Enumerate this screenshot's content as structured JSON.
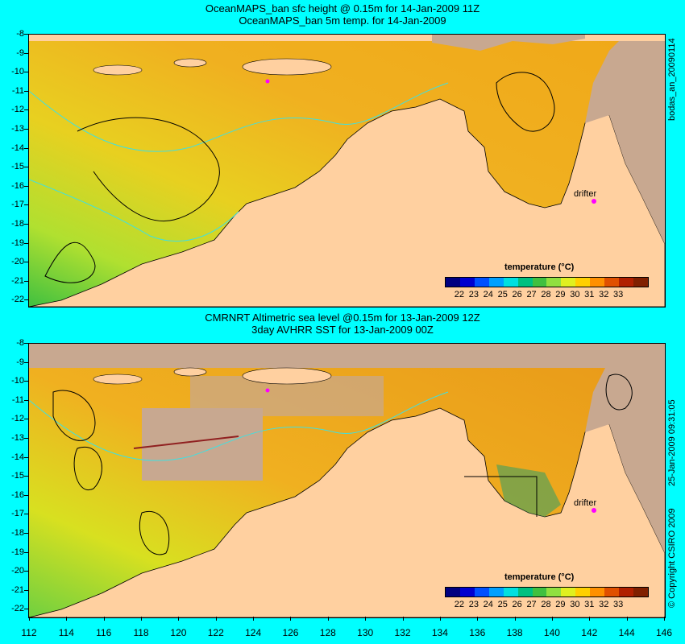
{
  "top": {
    "title1": "OceanMAPS_ban sfc height @ 0.15m for 14-Jan-2009 11Z",
    "title2": "OceanMAPS_ban 5m temp. for 14-Jan-2009",
    "side_label": "bodas_an_20090114"
  },
  "bottom": {
    "title1": "CMRNRT Altimetric sea level  @0.15m  for 13-Jan-2009 12Z",
    "title2": "3day AVHRR SST for 13-Jan-2009 00Z",
    "side_label": "25-Jan-2009 09:31:05",
    "copyright": "© Copyright CSIRO 2009"
  },
  "colorbar": {
    "title": "temperature (°C)",
    "labels": [
      "22",
      "23",
      "24",
      "25",
      "26",
      "27",
      "28",
      "29",
      "30",
      "31",
      "32",
      "33"
    ],
    "colors": [
      "#000080",
      "#0000d0",
      "#0050ff",
      "#00a0ff",
      "#00e0e0",
      "#00c080",
      "#40c040",
      "#90e040",
      "#e0f020",
      "#ffd000",
      "#ff9000",
      "#e05000",
      "#b02000",
      "#802000"
    ]
  },
  "drifter_label": "drifter",
  "lat_labels": [
    "-8",
    "-9",
    "-10",
    "-11",
    "-12",
    "-13",
    "-14",
    "-15",
    "-16",
    "-17",
    "-18",
    "-19",
    "-20",
    "-21",
    "-22"
  ],
  "lon_labels": [
    "112",
    "114",
    "116",
    "118",
    "120",
    "122",
    "124",
    "126",
    "128",
    "130",
    "132",
    "134",
    "136",
    "138",
    "140",
    "142",
    "144",
    "146"
  ],
  "colors": {
    "land": "#ffd0a0",
    "ocean_warm": "#f0b020",
    "ocean_mid": "#d8e020",
    "ocean_cool": "#50c040",
    "cloud": "#c8a890",
    "contour": "#40e0e0"
  }
}
